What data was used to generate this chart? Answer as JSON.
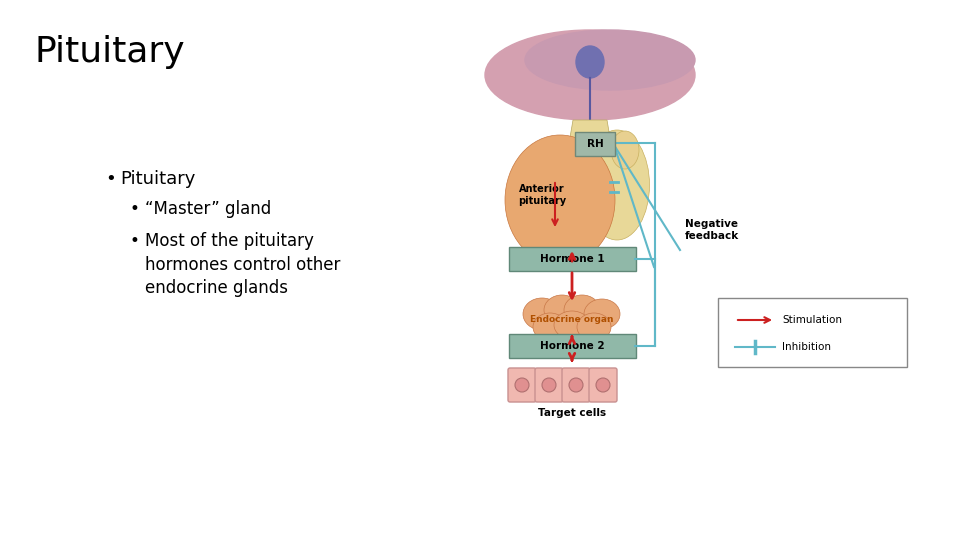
{
  "title": "Pituitary",
  "title_fontsize": 26,
  "background_color": "#ffffff",
  "text_color": "#000000",
  "bullet1": "Pituitary",
  "bullet2": "“Master” gland",
  "bullet3": "Most of the pituitary\nhormones control other\nendocrine glands",
  "bullet_fontsize": 13,
  "sub_bullet_fontsize": 12,
  "brain_color": "#d4a0b0",
  "brain_top_color": "#c89090",
  "neuron_color": "#7070b0",
  "stalk_color": "#e8d898",
  "posterior_color": "#e8d898",
  "anterior_color": "#e8a870",
  "rh_box_color": "#a0b8a8",
  "rh_border_color": "#708878",
  "hormone_box_color": "#90b8a8",
  "hormone_border_color": "#608878",
  "organ_color": "#e8a878",
  "organ_border_color": "#c87848",
  "cell_color": "#f0b8b0",
  "cell_border_color": "#c89090",
  "nucleus_color": "#e09090",
  "arrow_color": "#cc2020",
  "feedback_color": "#60b8c8",
  "neg_feedback_label": "Negative\nfeedback",
  "anterior_label": "Anterior\npituitary",
  "h1_label": "Hormone 1",
  "organ_label": "Endocrine organ",
  "h2_label": "Hormone 2",
  "target_label": "Target cells",
  "stim_label": "Stimulation",
  "inhib_label": "Inhibition",
  "rh_label": "RH"
}
